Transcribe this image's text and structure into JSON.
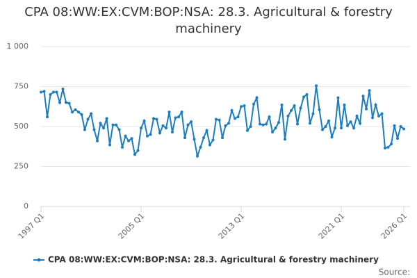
{
  "chart_data": {
    "type": "line",
    "title": "CPA 08:WW:EX:CVM:BOP:NSA: 28.3. Agricultural & forestry machinery",
    "categories": [
      "1997 Q1",
      null,
      null,
      null,
      null,
      null,
      null,
      null,
      null,
      null,
      null,
      null,
      null,
      null,
      null,
      null,
      null,
      null,
      null,
      null,
      null,
      null,
      null,
      null,
      null,
      null,
      null,
      null,
      null,
      null,
      null,
      null,
      "2005 Q1",
      null,
      null,
      null,
      null,
      null,
      null,
      null,
      null,
      null,
      null,
      null,
      null,
      null,
      null,
      null,
      null,
      null,
      null,
      null,
      null,
      null,
      null,
      null,
      null,
      null,
      null,
      null,
      null,
      null,
      null,
      null,
      "2013 Q1",
      null,
      null,
      null,
      null,
      null,
      null,
      null,
      null,
      null,
      null,
      null,
      null,
      null,
      null,
      null,
      null,
      null,
      null,
      null,
      null,
      null,
      null,
      null,
      null,
      null,
      null,
      null,
      null,
      null,
      null,
      null,
      "2021 Q1",
      null,
      null,
      null,
      null,
      null,
      null,
      null,
      null,
      null,
      null,
      null,
      null,
      null,
      null,
      null,
      null,
      null,
      null,
      null,
      "2026 Q1"
    ],
    "series": [
      {
        "name": "CPA 08:WW:EX:CVM:BOP:NSA: 28.3. Agricultural & forestry machinery",
        "color": "#1a7dc0",
        "values": [
          715,
          720,
          560,
          700,
          715,
          715,
          650,
          735,
          650,
          645,
          590,
          605,
          590,
          575,
          480,
          545,
          580,
          480,
          410,
          520,
          490,
          550,
          385,
          510,
          510,
          480,
          370,
          440,
          410,
          425,
          325,
          350,
          490,
          535,
          440,
          450,
          550,
          545,
          460,
          505,
          490,
          590,
          465,
          555,
          560,
          590,
          430,
          510,
          530,
          420,
          315,
          370,
          430,
          475,
          385,
          415,
          545,
          540,
          430,
          505,
          520,
          600,
          550,
          560,
          625,
          630,
          475,
          500,
          640,
          680,
          515,
          510,
          515,
          560,
          465,
          490,
          525,
          635,
          420,
          565,
          600,
          630,
          515,
          615,
          685,
          700,
          520,
          580,
          755,
          605,
          480,
          500,
          535,
          435,
          490,
          680,
          490,
          635,
          505,
          530,
          490,
          565,
          520,
          690,
          610,
          725,
          555,
          635,
          565,
          580,
          365,
          370,
          390,
          505,
          425,
          500,
          485
        ]
      }
    ],
    "ylim": [
      0,
      1000
    ],
    "yticks": [
      0,
      250,
      500,
      750,
      {
        "value": 1000,
        "label": "1 000"
      }
    ],
    "grid": true,
    "source_label": "Source:"
  }
}
